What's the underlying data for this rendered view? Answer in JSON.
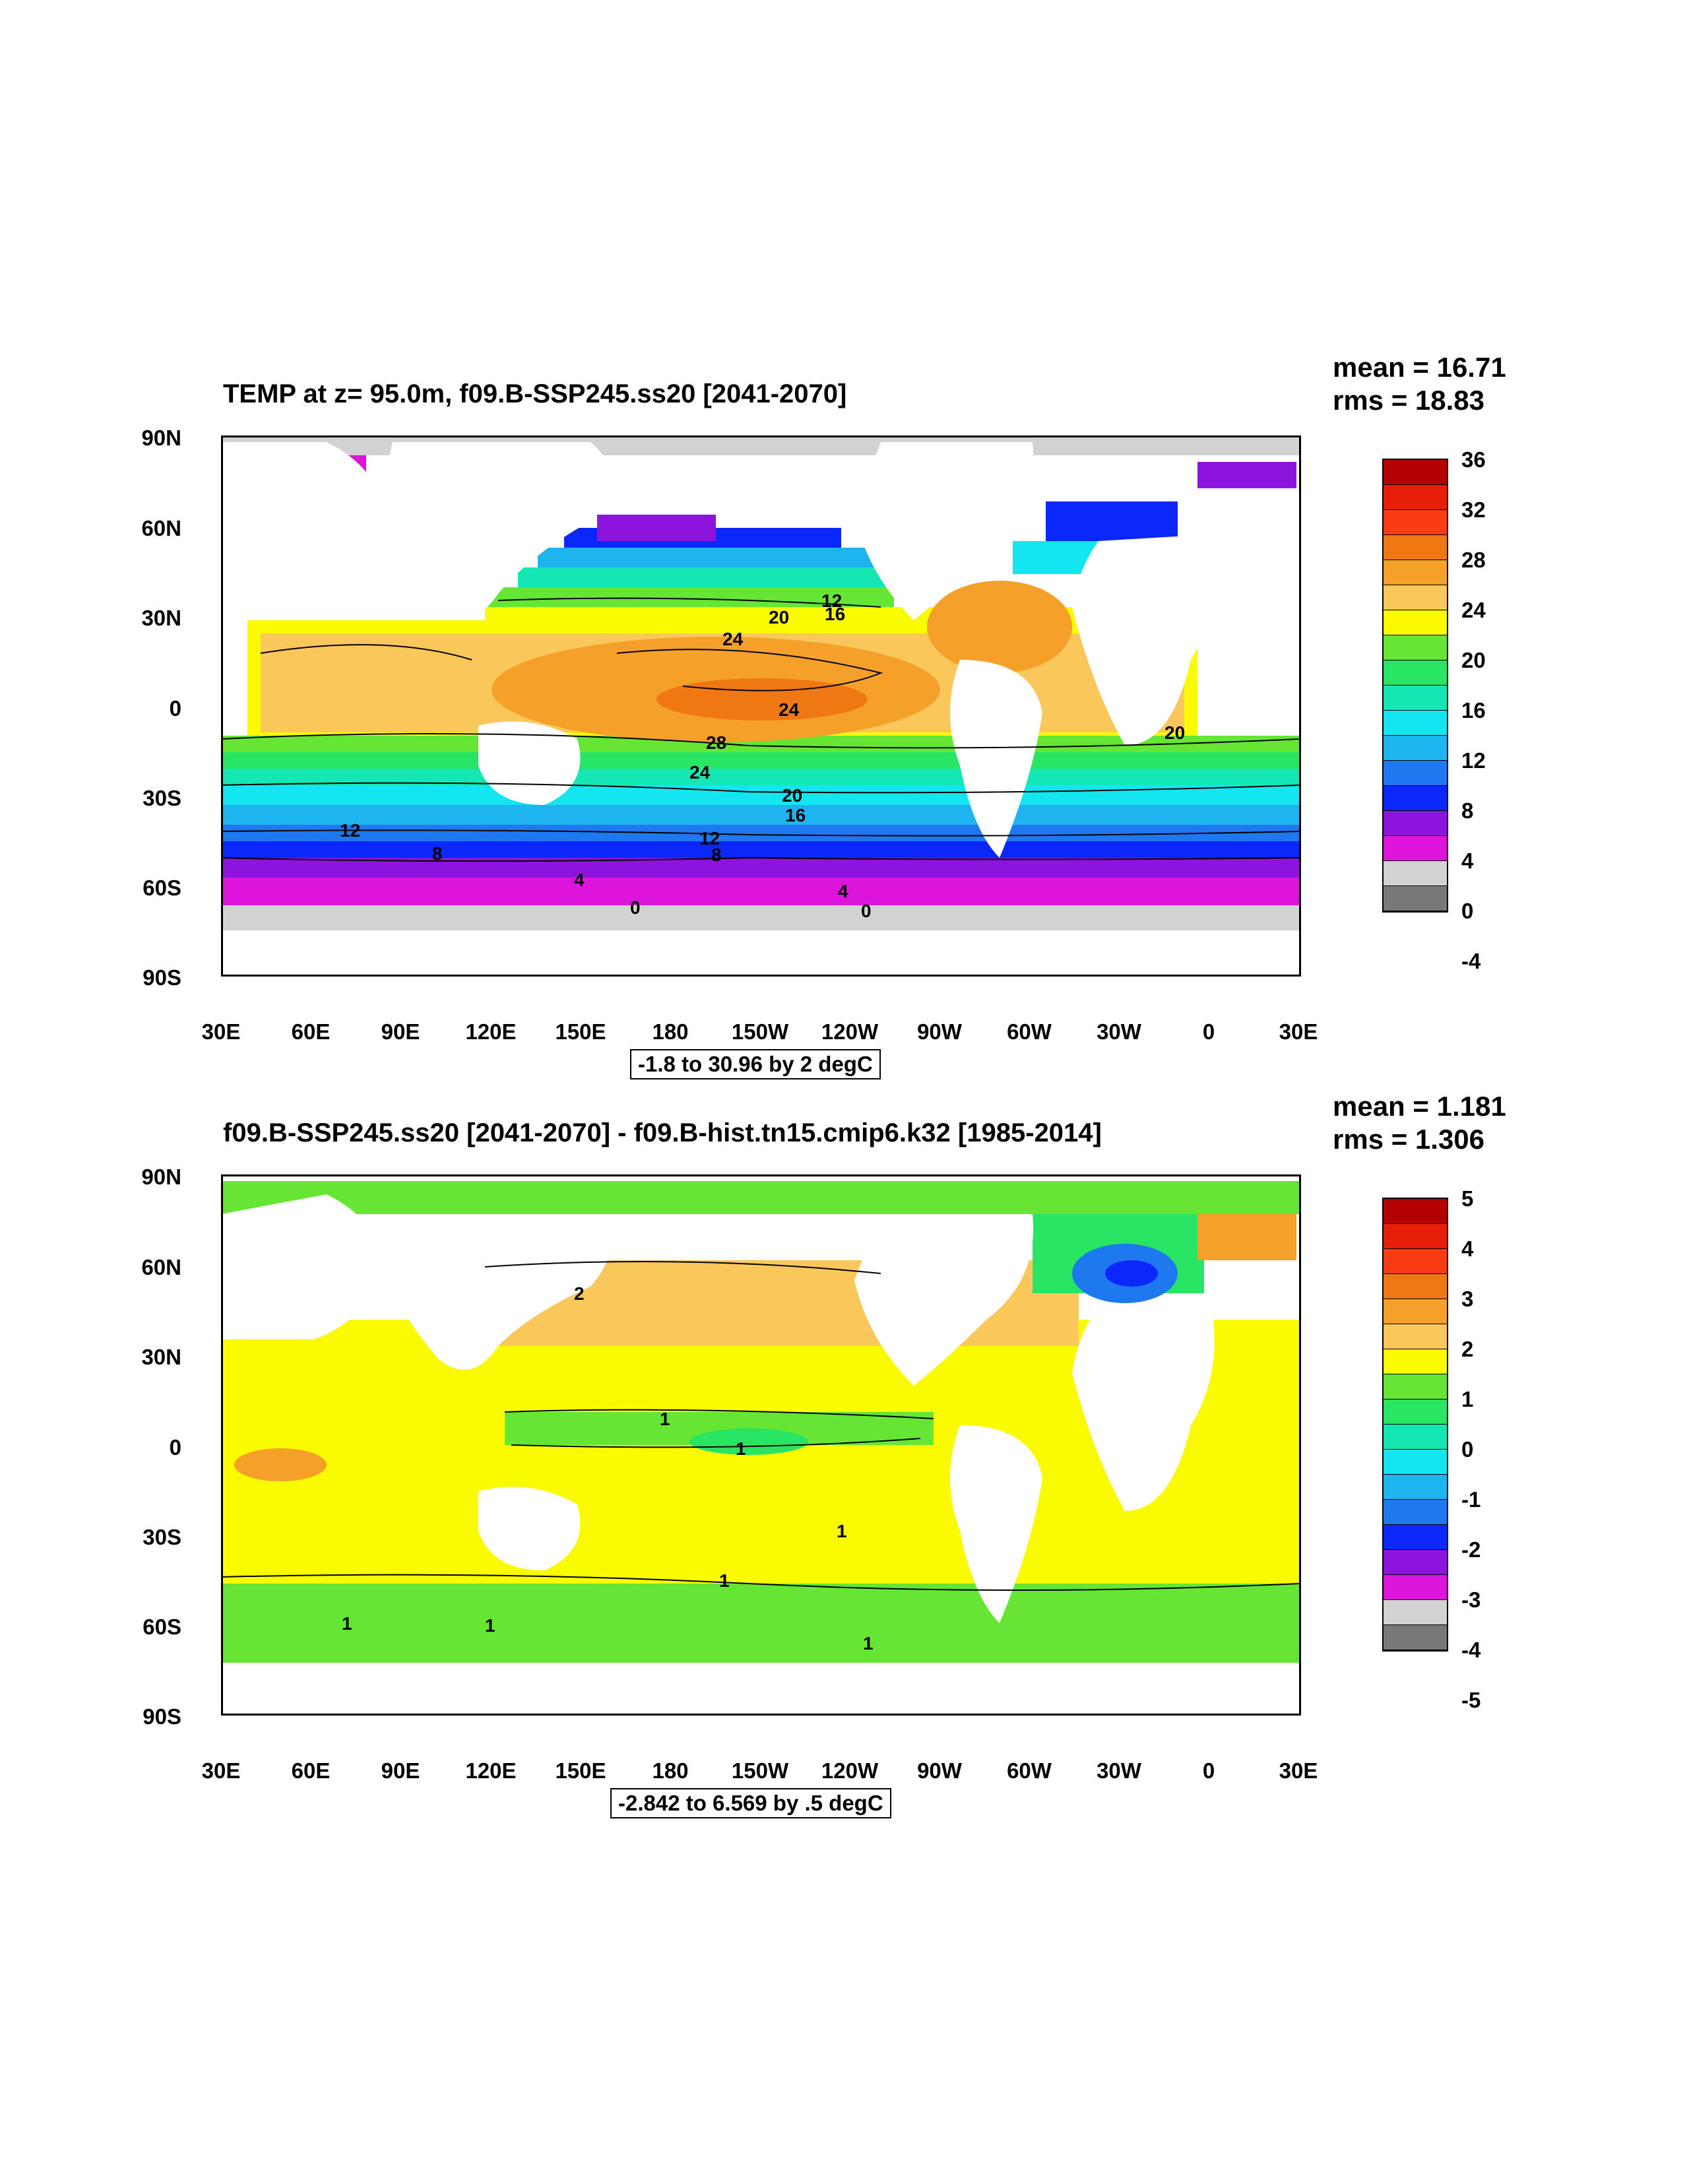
{
  "panels": [
    {
      "title": "TEMP at z=  95.0m, f09.B-SSP245.ss20 [2041-2070]",
      "mean_label": "mean = 16.71",
      "rms_label": "rms = 18.83",
      "range_label": "-1.8 to 30.96 by 2 degC",
      "contour_labels": [
        "12",
        "16",
        "20",
        "24",
        "24",
        "28",
        "24",
        "20",
        "16",
        "12",
        "8",
        "8",
        "12",
        "4",
        "4",
        "0",
        "0",
        "20"
      ],
      "colorbar": {
        "labels": [
          "36",
          "32",
          "28",
          "24",
          "20",
          "16",
          "12",
          "8",
          "4",
          "0",
          "-4"
        ],
        "colors": [
          "#b40000",
          "#e61e0a",
          "#fa3c14",
          "#f07814",
          "#f5a028",
          "#fac85a",
          "#fafa00",
          "#64e632",
          "#28e664",
          "#14e6b4",
          "#14e6f0",
          "#1eb4f0",
          "#1e78f0",
          "#0a28fa",
          "#8c14dc",
          "#dc14dc",
          "#d2d2d2",
          "#787878"
        ]
      }
    },
    {
      "title": "f09.B-SSP245.ss20 [2041-2070] - f09.B-hist.tn15.cmip6.k32 [1985-2014]",
      "mean_label": "mean = 1.181",
      "rms_label": "rms = 1.306",
      "range_label": "-2.842 to 6.569 by .5 degC",
      "contour_labels": [
        "1",
        "1",
        "1",
        "1",
        "1",
        "1",
        "1",
        "2"
      ],
      "colorbar": {
        "labels": [
          "5",
          "4",
          "3",
          "2",
          "1",
          "0",
          "-1",
          "-2",
          "-3",
          "-4",
          "-5"
        ],
        "colors": [
          "#b40000",
          "#e61e0a",
          "#fa3c14",
          "#f07814",
          "#f5a028",
          "#fac85a",
          "#fafa00",
          "#64e632",
          "#28e664",
          "#14e6b4",
          "#14e6f0",
          "#1eb4f0",
          "#1e78f0",
          "#0a28fa",
          "#8c14dc",
          "#dc14dc",
          "#d2d2d2",
          "#787878"
        ]
      }
    }
  ],
  "axes": {
    "y_ticks": [
      "90N",
      "60N",
      "30N",
      "0",
      "30S",
      "60S",
      "90S"
    ],
    "x_ticks": [
      "30E",
      "60E",
      "90E",
      "120E",
      "150E",
      "180",
      "150W",
      "120W",
      "90W",
      "60W",
      "30W",
      "0",
      "30E"
    ]
  },
  "colors": {
    "land": "#ffffff",
    "sea_ice_grey": "#d2d2d2",
    "contour_line": "#000000"
  }
}
